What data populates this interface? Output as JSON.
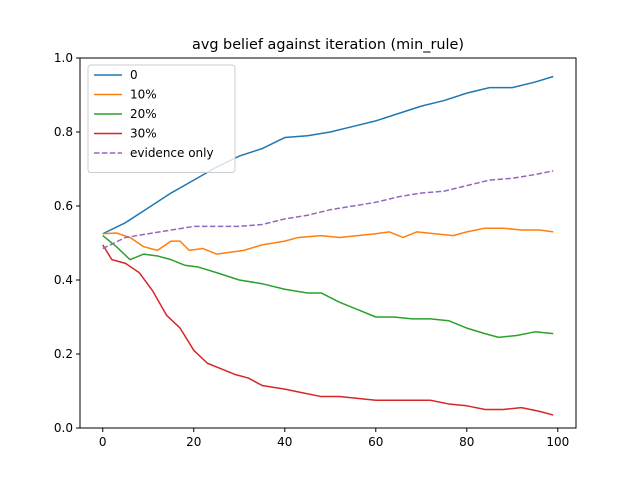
{
  "chart_data": {
    "type": "line",
    "title": "avg belief against iteration (min_rule)",
    "xlabel": "",
    "ylabel": "",
    "xlim": [
      -5,
      104
    ],
    "ylim": [
      0.0,
      1.0
    ],
    "xticks": [
      0,
      20,
      40,
      60,
      80,
      100
    ],
    "yticks": [
      0.0,
      0.2,
      0.4,
      0.6,
      0.8,
      1.0
    ],
    "xtick_labels": [
      "0",
      "20",
      "40",
      "60",
      "80",
      "100"
    ],
    "ytick_labels": [
      "0.0",
      "0.2",
      "0.4",
      "0.6",
      "0.8",
      "1.0"
    ],
    "grid": false,
    "legend_position": "upper-left",
    "series": [
      {
        "name": "0",
        "color": "#1f77b4",
        "dash": "solid",
        "points": [
          [
            0,
            0.525
          ],
          [
            5,
            0.555
          ],
          [
            10,
            0.595
          ],
          [
            15,
            0.635
          ],
          [
            20,
            0.67
          ],
          [
            25,
            0.705
          ],
          [
            30,
            0.735
          ],
          [
            35,
            0.755
          ],
          [
            40,
            0.785
          ],
          [
            45,
            0.79
          ],
          [
            50,
            0.8
          ],
          [
            55,
            0.815
          ],
          [
            60,
            0.83
          ],
          [
            65,
            0.85
          ],
          [
            70,
            0.87
          ],
          [
            75,
            0.885
          ],
          [
            80,
            0.905
          ],
          [
            85,
            0.92
          ],
          [
            90,
            0.92
          ],
          [
            95,
            0.935
          ],
          [
            99,
            0.95
          ]
        ]
      },
      {
        "name": "10%",
        "color": "#ff7f0e",
        "dash": "solid",
        "points": [
          [
            0,
            0.525
          ],
          [
            3,
            0.527
          ],
          [
            6,
            0.515
          ],
          [
            9,
            0.49
          ],
          [
            12,
            0.48
          ],
          [
            15,
            0.505
          ],
          [
            17,
            0.505
          ],
          [
            19,
            0.48
          ],
          [
            22,
            0.485
          ],
          [
            25,
            0.47
          ],
          [
            28,
            0.475
          ],
          [
            31,
            0.48
          ],
          [
            35,
            0.495
          ],
          [
            40,
            0.505
          ],
          [
            43,
            0.515
          ],
          [
            48,
            0.52
          ],
          [
            52,
            0.515
          ],
          [
            56,
            0.52
          ],
          [
            60,
            0.525
          ],
          [
            63,
            0.53
          ],
          [
            66,
            0.515
          ],
          [
            69,
            0.53
          ],
          [
            73,
            0.525
          ],
          [
            77,
            0.52
          ],
          [
            80,
            0.53
          ],
          [
            84,
            0.54
          ],
          [
            88,
            0.54
          ],
          [
            92,
            0.535
          ],
          [
            96,
            0.535
          ],
          [
            99,
            0.53
          ]
        ]
      },
      {
        "name": "20%",
        "color": "#2ca02c",
        "dash": "solid",
        "points": [
          [
            0,
            0.52
          ],
          [
            3,
            0.49
          ],
          [
            6,
            0.455
          ],
          [
            9,
            0.47
          ],
          [
            12,
            0.465
          ],
          [
            15,
            0.455
          ],
          [
            18,
            0.44
          ],
          [
            21,
            0.435
          ],
          [
            25,
            0.42
          ],
          [
            30,
            0.4
          ],
          [
            35,
            0.39
          ],
          [
            40,
            0.375
          ],
          [
            45,
            0.365
          ],
          [
            48,
            0.365
          ],
          [
            52,
            0.34
          ],
          [
            56,
            0.32
          ],
          [
            60,
            0.3
          ],
          [
            64,
            0.3
          ],
          [
            68,
            0.295
          ],
          [
            72,
            0.295
          ],
          [
            76,
            0.29
          ],
          [
            80,
            0.27
          ],
          [
            84,
            0.255
          ],
          [
            87,
            0.245
          ],
          [
            91,
            0.25
          ],
          [
            95,
            0.26
          ],
          [
            99,
            0.255
          ]
        ]
      },
      {
        "name": "30%",
        "color": "#d62728",
        "dash": "solid",
        "points": [
          [
            0,
            0.495
          ],
          [
            2,
            0.455
          ],
          [
            5,
            0.445
          ],
          [
            8,
            0.42
          ],
          [
            11,
            0.37
          ],
          [
            14,
            0.305
          ],
          [
            17,
            0.27
          ],
          [
            20,
            0.21
          ],
          [
            23,
            0.175
          ],
          [
            26,
            0.16
          ],
          [
            29,
            0.145
          ],
          [
            32,
            0.135
          ],
          [
            35,
            0.115
          ],
          [
            40,
            0.105
          ],
          [
            44,
            0.095
          ],
          [
            48,
            0.085
          ],
          [
            52,
            0.085
          ],
          [
            56,
            0.08
          ],
          [
            60,
            0.075
          ],
          [
            64,
            0.075
          ],
          [
            68,
            0.075
          ],
          [
            72,
            0.075
          ],
          [
            76,
            0.065
          ],
          [
            80,
            0.06
          ],
          [
            84,
            0.05
          ],
          [
            88,
            0.05
          ],
          [
            92,
            0.055
          ],
          [
            96,
            0.045
          ],
          [
            99,
            0.035
          ]
        ]
      },
      {
        "name": "evidence only",
        "color": "#9467bd",
        "dash": "dashed",
        "points": [
          [
            0,
            0.485
          ],
          [
            5,
            0.515
          ],
          [
            10,
            0.525
          ],
          [
            15,
            0.535
          ],
          [
            20,
            0.545
          ],
          [
            25,
            0.545
          ],
          [
            30,
            0.545
          ],
          [
            35,
            0.55
          ],
          [
            40,
            0.565
          ],
          [
            45,
            0.575
          ],
          [
            50,
            0.59
          ],
          [
            55,
            0.6
          ],
          [
            60,
            0.61
          ],
          [
            65,
            0.625
          ],
          [
            70,
            0.635
          ],
          [
            75,
            0.64
          ],
          [
            80,
            0.655
          ],
          [
            85,
            0.67
          ],
          [
            90,
            0.675
          ],
          [
            95,
            0.685
          ],
          [
            99,
            0.695
          ]
        ]
      }
    ]
  }
}
